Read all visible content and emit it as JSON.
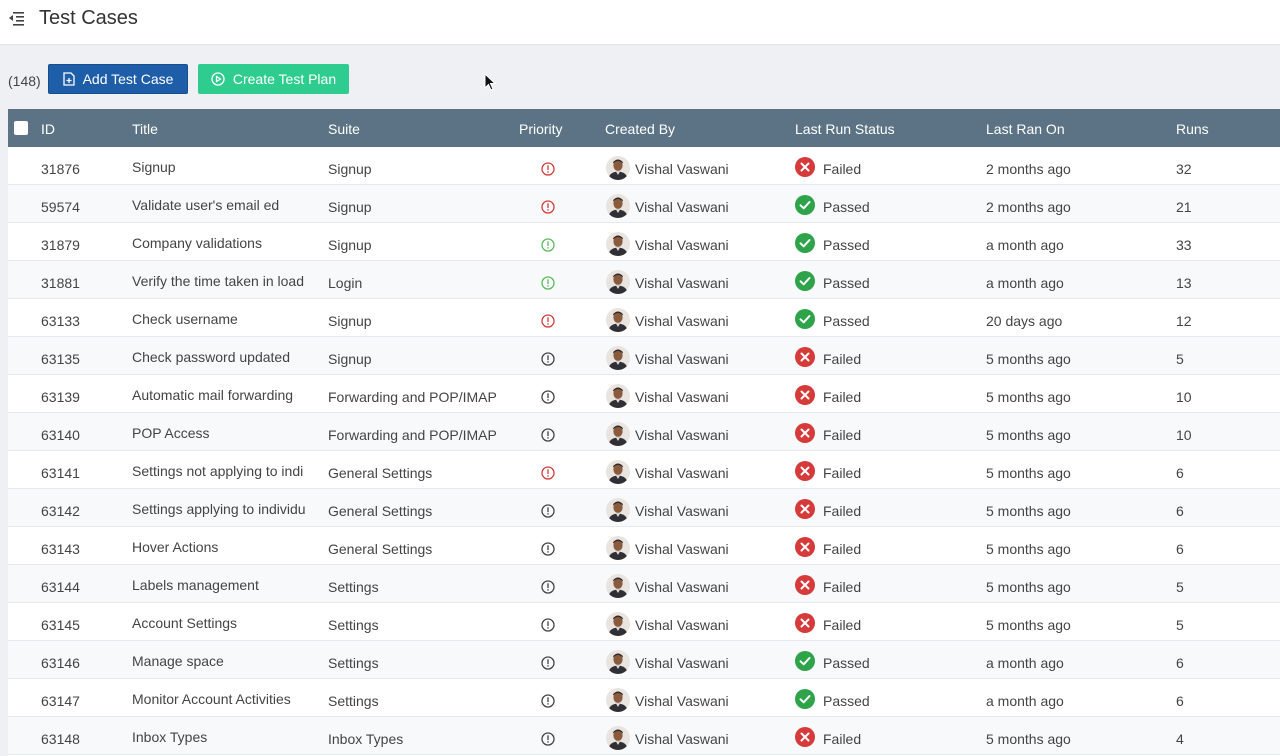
{
  "header": {
    "title": "Test Cases"
  },
  "toolbar": {
    "count": "(148)",
    "add_label": "Add Test Case",
    "plan_label": "Create Test Plan"
  },
  "colors": {
    "add_button": "#1e5ea8",
    "plan_button": "#2ecc8e",
    "header_bg": "#5b7384",
    "failed": "#d63b3b",
    "passed": "#2ea34a",
    "priority_high": "#d63b3b",
    "priority_low": "#5cb85c",
    "priority_normal": "#444444"
  },
  "table": {
    "columns": [
      "ID",
      "Title",
      "Suite",
      "Priority",
      "Created By",
      "Last Run Status",
      "Last Ran On",
      "Runs"
    ],
    "rows": [
      {
        "id": "31876",
        "title": "Signup",
        "suite": "Signup",
        "priority": "high",
        "creator": "Vishal Vaswani",
        "status": "Failed",
        "ran_on": "2 months ago",
        "runs": "32"
      },
      {
        "id": "59574",
        "title": "Validate user's email ed",
        "suite": "Signup",
        "priority": "high",
        "creator": "Vishal Vaswani",
        "status": "Passed",
        "ran_on": "2 months ago",
        "runs": "21"
      },
      {
        "id": "31879",
        "title": "Company validations",
        "suite": "Signup",
        "priority": "low",
        "creator": "Vishal Vaswani",
        "status": "Passed",
        "ran_on": "a month ago",
        "runs": "33"
      },
      {
        "id": "31881",
        "title": "Verify the time taken in load",
        "suite": "Login",
        "priority": "low",
        "creator": "Vishal Vaswani",
        "status": "Passed",
        "ran_on": "a month ago",
        "runs": "13"
      },
      {
        "id": "63133",
        "title": "Check username",
        "suite": "Signup",
        "priority": "high",
        "creator": "Vishal Vaswani",
        "status": "Passed",
        "ran_on": "20 days ago",
        "runs": "12"
      },
      {
        "id": "63135",
        "title": "Check password updated",
        "suite": "Signup",
        "priority": "normal",
        "creator": "Vishal Vaswani",
        "status": "Failed",
        "ran_on": "5 months ago",
        "runs": "5"
      },
      {
        "id": "63139",
        "title": "Automatic mail forwarding",
        "suite": "Forwarding and POP/IMAP",
        "priority": "normal",
        "creator": "Vishal Vaswani",
        "status": "Failed",
        "ran_on": "5 months ago",
        "runs": "10"
      },
      {
        "id": "63140",
        "title": "POP Access",
        "suite": "Forwarding and POP/IMAP",
        "priority": "normal",
        "creator": "Vishal Vaswani",
        "status": "Failed",
        "ran_on": "5 months ago",
        "runs": "10"
      },
      {
        "id": "63141",
        "title": "Settings not applying to indi",
        "suite": "General Settings",
        "priority": "high",
        "creator": "Vishal Vaswani",
        "status": "Failed",
        "ran_on": "5 months ago",
        "runs": "6"
      },
      {
        "id": "63142",
        "title": "Settings applying to individu",
        "suite": "General Settings",
        "priority": "normal",
        "creator": "Vishal Vaswani",
        "status": "Failed",
        "ran_on": "5 months ago",
        "runs": "6"
      },
      {
        "id": "63143",
        "title": "Hover Actions",
        "suite": "General Settings",
        "priority": "normal",
        "creator": "Vishal Vaswani",
        "status": "Failed",
        "ran_on": "5 months ago",
        "runs": "6"
      },
      {
        "id": "63144",
        "title": "Labels management",
        "suite": "Settings",
        "priority": "normal",
        "creator": "Vishal Vaswani",
        "status": "Failed",
        "ran_on": "5 months ago",
        "runs": "5"
      },
      {
        "id": "63145",
        "title": "Account Settings",
        "suite": "Settings",
        "priority": "normal",
        "creator": "Vishal Vaswani",
        "status": "Failed",
        "ran_on": "5 months ago",
        "runs": "5"
      },
      {
        "id": "63146",
        "title": "Manage space",
        "suite": "Settings",
        "priority": "normal",
        "creator": "Vishal Vaswani",
        "status": "Passed",
        "ran_on": "a month ago",
        "runs": "6"
      },
      {
        "id": "63147",
        "title": "Monitor Account Activities",
        "suite": "Settings",
        "priority": "normal",
        "creator": "Vishal Vaswani",
        "status": "Passed",
        "ran_on": "a month ago",
        "runs": "6"
      },
      {
        "id": "63148",
        "title": "Inbox Types",
        "suite": "Inbox Types",
        "priority": "normal",
        "creator": "Vishal Vaswani",
        "status": "Failed",
        "ran_on": "5 months ago",
        "runs": "4"
      }
    ]
  }
}
